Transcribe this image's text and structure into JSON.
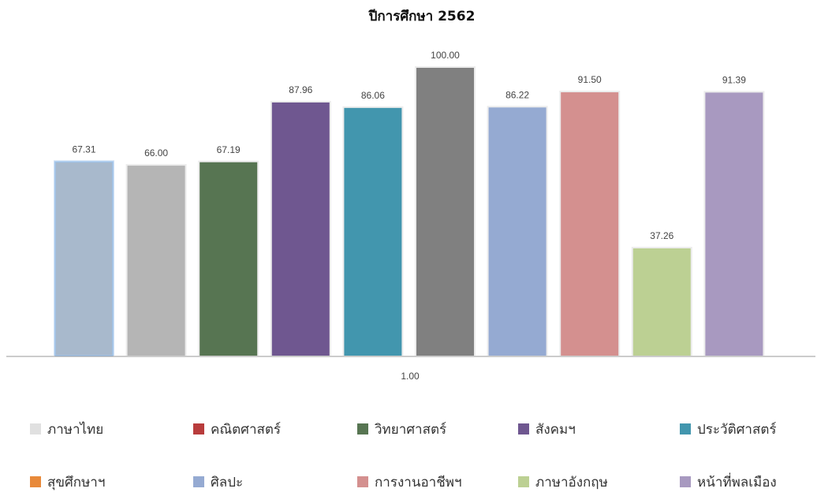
{
  "chart_data": {
    "type": "bar",
    "title": "ปีการศึกษา  2562",
    "categories": [
      "1.00"
    ],
    "ylim": [
      0,
      100
    ],
    "grid": false,
    "legend_position": "bottom",
    "series": [
      {
        "name": "ภาษาไทย",
        "value": 67.31,
        "value_label": "67.31",
        "color": "#a8b9cc",
        "highlighted": true
      },
      {
        "name": "คณิตศาสตร์",
        "value": 66.0,
        "value_label": "66.00",
        "color": "#b5b5b5",
        "legend_color": "#b83c3c"
      },
      {
        "name": "วิทยาศาสตร์",
        "value": 67.19,
        "value_label": "67.19",
        "color": "#577552"
      },
      {
        "name": "สังคมฯ",
        "value": 87.96,
        "value_label": "87.96",
        "color": "#6f5790"
      },
      {
        "name": "ประวัติศาสตร์",
        "value": 86.06,
        "value_label": "86.06",
        "color": "#4296ae"
      },
      {
        "name": "สุขศึกษาฯ",
        "value": 100.0,
        "value_label": "100.00",
        "color": "#808080",
        "legend_color": "#e8893a"
      },
      {
        "name": "ศิลปะ",
        "value": 86.22,
        "value_label": "86.22",
        "color": "#95aad2"
      },
      {
        "name": "การงานอาชีพฯ",
        "value": 91.5,
        "value_label": "91.50",
        "color": "#d4908f"
      },
      {
        "name": "ภาษาอังกฤษ",
        "value": 37.26,
        "value_label": "37.26",
        "color": "#bcd093"
      },
      {
        "name": "หน้าที่พลเมือง",
        "value": 91.39,
        "value_label": "91.39",
        "color": "#a899c0"
      }
    ],
    "legend_first_swatch_color": "#e0e0e0"
  }
}
